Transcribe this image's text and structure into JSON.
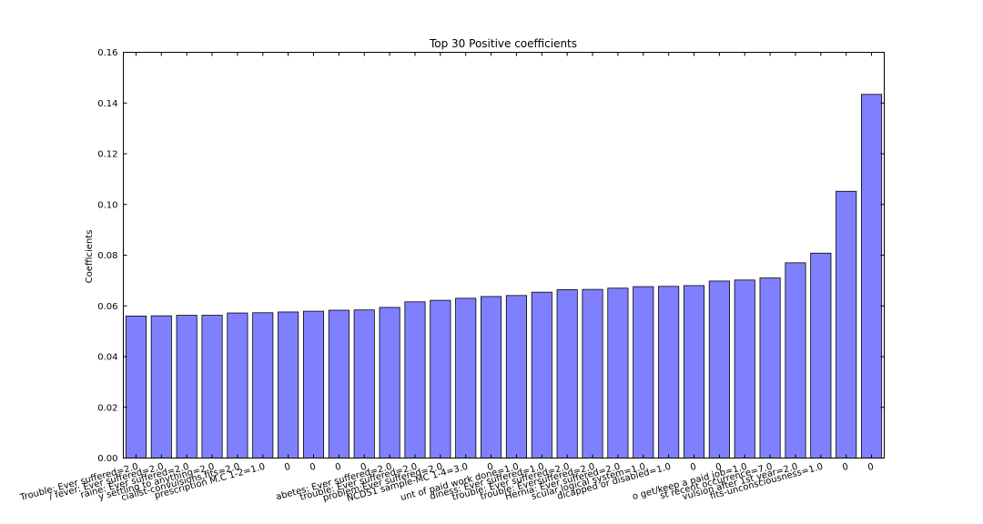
{
  "chart_data": {
    "type": "bar",
    "title": "Top 30 Positive coefficients",
    "xlabel": "",
    "ylabel": "Coefficients",
    "ylim": [
      0,
      0.16
    ],
    "yticks": [
      "0.00",
      "0.02",
      "0.04",
      "0.06",
      "0.08",
      "0.10",
      "0.12",
      "0.14",
      "0.16"
    ],
    "grid": false,
    "bar_color": "#8080ff",
    "categories": [
      "Trouble: Ever suffered=2.0",
      "/ fever: Ever suffered=2.0",
      "raine: Ever suffered=2.0",
      "y settling to anything=2.0",
      "cialist-convulsions,fits=2.0",
      "prescription  M.C 1-2=1.0",
      "0",
      "0",
      "0",
      "0",
      "abetes: Ever suffered=2.0",
      "trouble: Ever suffered=2.0",
      "problem:Ever suffered=2.0",
      "NCDS1 sample-MC 1-4=3.0",
      "0",
      "unt of paid work done=1.0",
      "diness: Ever suffered=1.0",
      "trouble: Ever suffered=2.0",
      "trouble: Eversuffered=2.0",
      "Hernia: Ever suffered=2.0",
      "scular,logical system=1.0",
      "dicapped or disabled=1.0",
      "0",
      "0",
      "o get/keep a paid job=1.0",
      "st recent occurrence=7.0",
      "vulsion after 1st year=2.0",
      "fits-unconsciousness=1.0",
      "0",
      "0"
    ],
    "values": [
      0.056,
      0.0561,
      0.0563,
      0.0563,
      0.0572,
      0.0573,
      0.0576,
      0.0579,
      0.0583,
      0.0584,
      0.0594,
      0.0616,
      0.0622,
      0.063,
      0.0637,
      0.0641,
      0.0654,
      0.0664,
      0.0665,
      0.067,
      0.0676,
      0.0677,
      0.068,
      0.0698,
      0.0702,
      0.071,
      0.077,
      0.0808,
      0.1052,
      0.1434
    ]
  }
}
